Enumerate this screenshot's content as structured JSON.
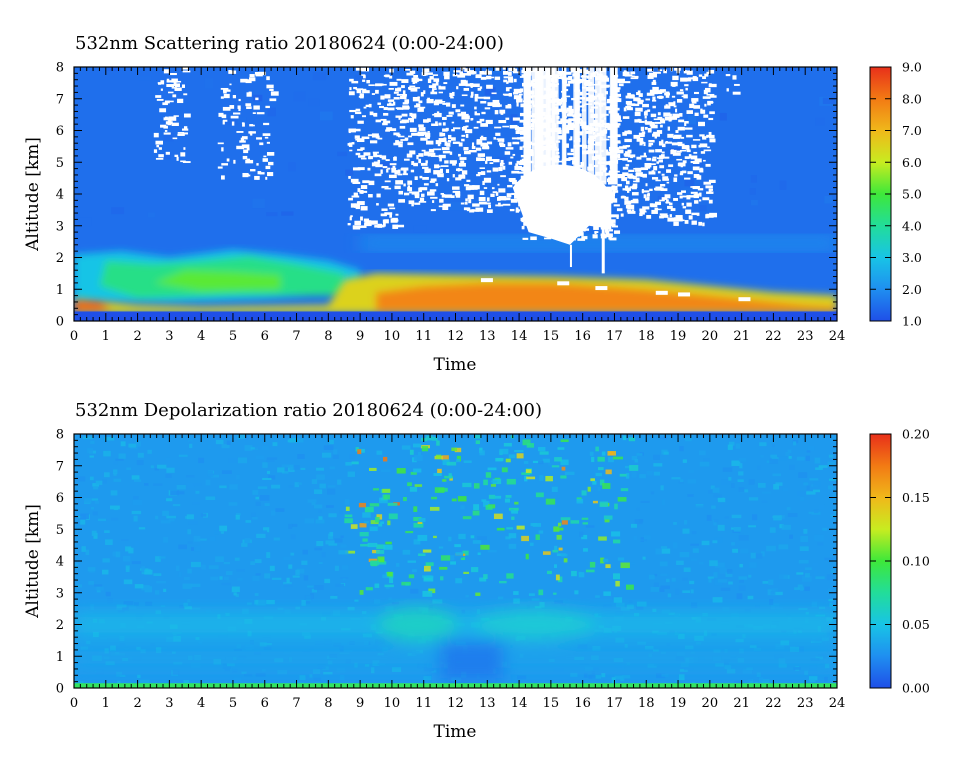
{
  "chart_data": [
    {
      "type": "heatmap",
      "title": "532nm Scattering ratio  20180624 (0:00-24:00)",
      "xlabel": "Time",
      "ylabel": "Altitude [km]",
      "xlim": [
        0,
        24
      ],
      "ylim": [
        0,
        8
      ],
      "x_ticks": [
        "0",
        "1",
        "2",
        "3",
        "4",
        "5",
        "6",
        "7",
        "8",
        "9",
        "10",
        "11",
        "12",
        "13",
        "14",
        "15",
        "16",
        "17",
        "18",
        "19",
        "20",
        "21",
        "22",
        "23",
        "24"
      ],
      "y_ticks": [
        "0",
        "1",
        "2",
        "3",
        "4",
        "5",
        "6",
        "7",
        "8"
      ],
      "colorbar": {
        "range": [
          1.0,
          9.0
        ],
        "tick_labels": [
          "1.0",
          "2.0",
          "3.0",
          "4.0",
          "5.0",
          "6.0",
          "7.0",
          "8.0",
          "9.0"
        ],
        "colors": [
          "#1f4fe8",
          "#1f8ff0",
          "#18c4e6",
          "#22dd9a",
          "#3ee83a",
          "#c8ec20",
          "#f0b81a",
          "#f27a14",
          "#e8301a"
        ]
      },
      "background_value": 1.5,
      "features": [
        {
          "name": "boundary-layer",
          "x": [
            0,
            24
          ],
          "y": [
            0.3,
            1.6
          ],
          "value": 7.0
        },
        {
          "name": "elevated-layer",
          "x": [
            0,
            9
          ],
          "y": [
            0.6,
            2.2
          ],
          "value": 4.0
        },
        {
          "name": "cloud",
          "x": [
            14,
            17
          ],
          "y": [
            2.5,
            8
          ],
          "value": "no data"
        },
        {
          "name": "high-cloud",
          "x": [
            8.5,
            20
          ],
          "y": [
            3,
            8
          ],
          "value": "no data"
        }
      ]
    },
    {
      "type": "heatmap",
      "title": "532nm Depolarization ratio  20180624 (0:00-24:00)",
      "xlabel": "Time",
      "ylabel": "Altitude [km]",
      "xlim": [
        0,
        24
      ],
      "ylim": [
        0,
        8
      ],
      "x_ticks": [
        "0",
        "1",
        "2",
        "3",
        "4",
        "5",
        "6",
        "7",
        "8",
        "9",
        "10",
        "11",
        "12",
        "13",
        "14",
        "15",
        "16",
        "17",
        "18",
        "19",
        "20",
        "21",
        "22",
        "23",
        "24"
      ],
      "y_ticks": [
        "0",
        "1",
        "2",
        "3",
        "4",
        "5",
        "6",
        "7",
        "8"
      ],
      "colorbar": {
        "range": [
          0.0,
          0.2
        ],
        "tick_labels": [
          "0.00",
          "0.05",
          "0.10",
          "0.15",
          "0.20"
        ],
        "colors": [
          "#1f4fe8",
          "#1f8ff0",
          "#18c4e6",
          "#22dd9a",
          "#3ee83a",
          "#c8ec20",
          "#f0b81a",
          "#f27a14",
          "#e8301a"
        ]
      },
      "background_value": 0.03,
      "features": [
        {
          "name": "dust-layer",
          "x": [
            0,
            24
          ],
          "y": [
            1.5,
            2.5
          ],
          "value": 0.06
        },
        {
          "name": "high-noise",
          "x": [
            9,
            17
          ],
          "y": [
            4,
            8
          ],
          "value": 0.12
        }
      ]
    }
  ]
}
